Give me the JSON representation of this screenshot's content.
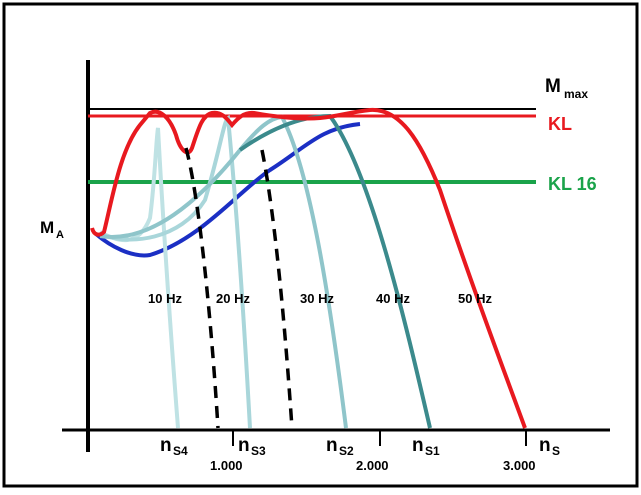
{
  "labels": {
    "y_axis": "M",
    "y_axis_sub": "A",
    "mmax": "M",
    "mmax_sub": "max",
    "kl": "KL",
    "kl16": "KL 16",
    "freq": [
      "10 Hz",
      "20 Hz",
      "30 Hz",
      "40 Hz",
      "50 Hz"
    ],
    "speed_marks": [
      {
        "main": "n",
        "sub": "S4"
      },
      {
        "main": "n",
        "sub": "S3"
      },
      {
        "main": "n",
        "sub": "S2"
      },
      {
        "main": "n",
        "sub": "S1"
      },
      {
        "main": "n",
        "sub": "S"
      }
    ],
    "ticks": [
      "1.000",
      "2.000",
      "3.000"
    ]
  },
  "colors": {
    "mmax_line": "#000000",
    "kl_line": "#e8191f",
    "kl16_line": "#1aa34a",
    "curve_50hz": "#e8191f",
    "curve_40hz": "#3b8a8c",
    "curve_30hz": "#8fc5ca",
    "curve_20hz": "#a9d6da",
    "curve_10hz": "#bfe2e4",
    "base_curve": "#1b2fc4",
    "dashed": "#000000"
  }
}
